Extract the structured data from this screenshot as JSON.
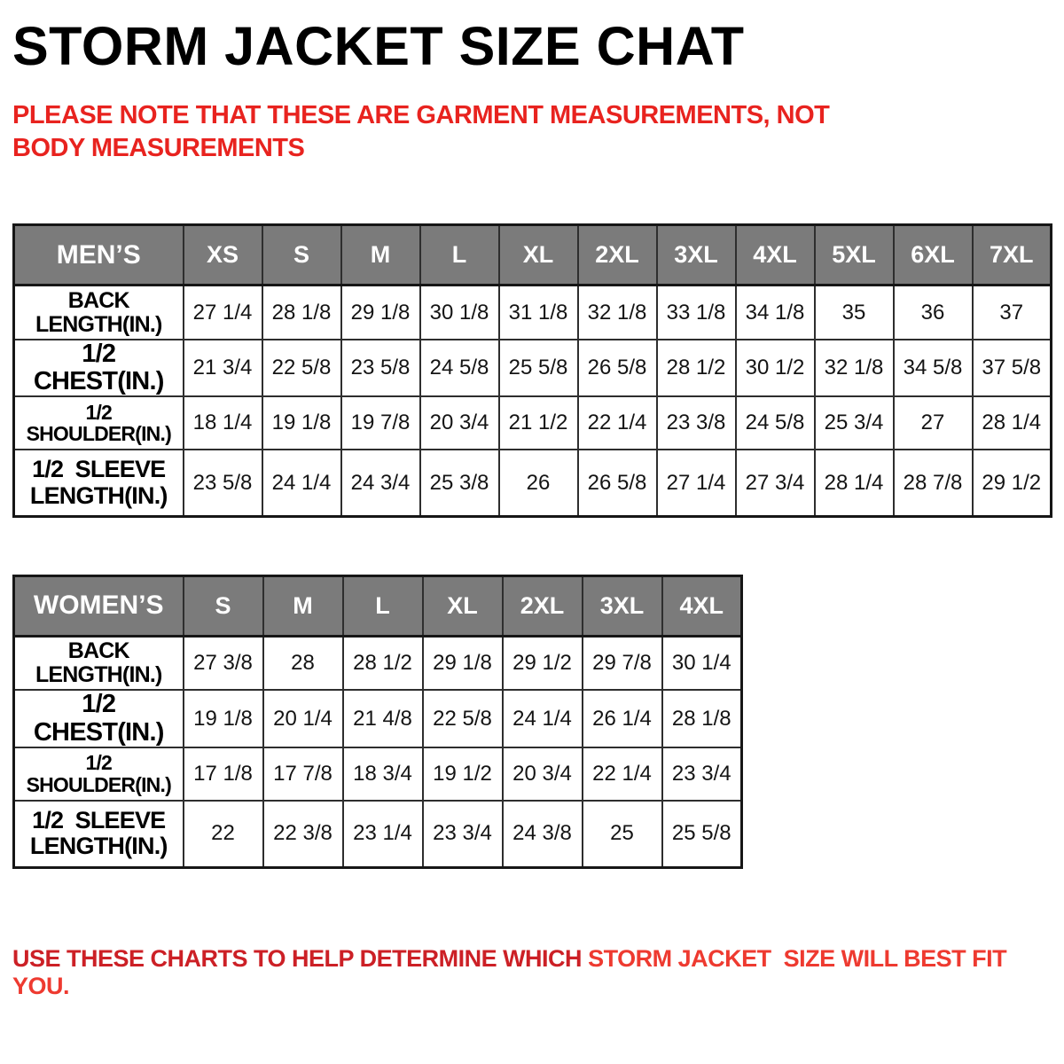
{
  "title": "STORM JACKET SIZE CHAT",
  "note": "PLEASE NOTE THAT THESE ARE GARMENT MEASUREMENTS, NOT BODY MEASUREMENTS",
  "footer": {
    "part1": "USE THESE CHARTS TO HELP DETERMINE WHICH ",
    "part2": "STORM JACKET  SIZE WILL BEST FIT YOU."
  },
  "colors": {
    "header_gray": "#7b7b7b",
    "note_red": "#e8231f",
    "footer_red_dark": "#cc2026",
    "footer_red_bright": "#ee3a30",
    "border_dark": "#161616"
  },
  "tables": [
    {
      "name": "mens",
      "title": "MEN’S",
      "sizes": [
        "XS",
        "S",
        "M",
        "L",
        "XL",
        "2XL",
        "3XL",
        "4XL",
        "5XL",
        "6XL",
        "7XL"
      ],
      "rows": [
        {
          "key": "back",
          "label": "BACK\nLENGTH(IN.)",
          "values": [
            "27 1/4",
            "28 1/8",
            "29 1/8",
            "30 1/8",
            "31 1/8",
            "32 1/8",
            "33 1/8",
            "34 1/8",
            "35",
            "36",
            "37"
          ]
        },
        {
          "key": "chest",
          "label": "1/2  CHEST(IN.)",
          "values": [
            "21 3/4",
            "22 5/8",
            "23 5/8",
            "24 5/8",
            "25 5/8",
            "26 5/8",
            "28 1/2",
            "30 1/2",
            "32 1/8",
            "34 5/8",
            "37 5/8"
          ]
        },
        {
          "key": "shoulder",
          "label": "1/2  SHOULDER(IN.)",
          "values": [
            "18 1/4",
            "19 1/8",
            "19 7/8",
            "20 3/4",
            "21 1/2",
            "22 1/4",
            "23 3/8",
            "24 5/8",
            "25 3/4",
            "27",
            "28 1/4"
          ]
        },
        {
          "key": "sleeve",
          "label": "1/2  SLEEVE\nLENGTH(IN.)",
          "values": [
            "23 5/8",
            "24 1/4",
            "24 3/4",
            "25 3/8",
            "26",
            "26 5/8",
            "27 1/4",
            "27 3/4",
            "28 1/4",
            "28 7/8",
            "29 1/2"
          ]
        }
      ]
    },
    {
      "name": "womens",
      "title": "WOMEN’S",
      "sizes": [
        "S",
        "M",
        "L",
        "XL",
        "2XL",
        "3XL",
        "4XL"
      ],
      "rows": [
        {
          "key": "back",
          "label": "BACK\nLENGTH(IN.)",
          "values": [
            "27 3/8",
            "28",
            "28 1/2",
            "29 1/8",
            "29 1/2",
            "29 7/8",
            "30 1/4"
          ]
        },
        {
          "key": "chest",
          "label": "1/2  CHEST(IN.)",
          "values": [
            "19 1/8",
            "20 1/4",
            "21 4/8",
            "22 5/8",
            "24 1/4",
            "26 1/4",
            "28 1/8"
          ]
        },
        {
          "key": "shoulder",
          "label": "1/2  SHOULDER(IN.)",
          "values": [
            "17 1/8",
            "17 7/8",
            "18 3/4",
            "19 1/2",
            "20 3/4",
            "22 1/4",
            "23 3/4"
          ]
        },
        {
          "key": "sleeve",
          "label": "1/2  SLEEVE\nLENGTH(IN.)",
          "values": [
            "22",
            "22 3/8",
            "23 1/4",
            "23 3/4",
            "24 3/8",
            "25",
            "25 5/8"
          ]
        }
      ]
    }
  ]
}
